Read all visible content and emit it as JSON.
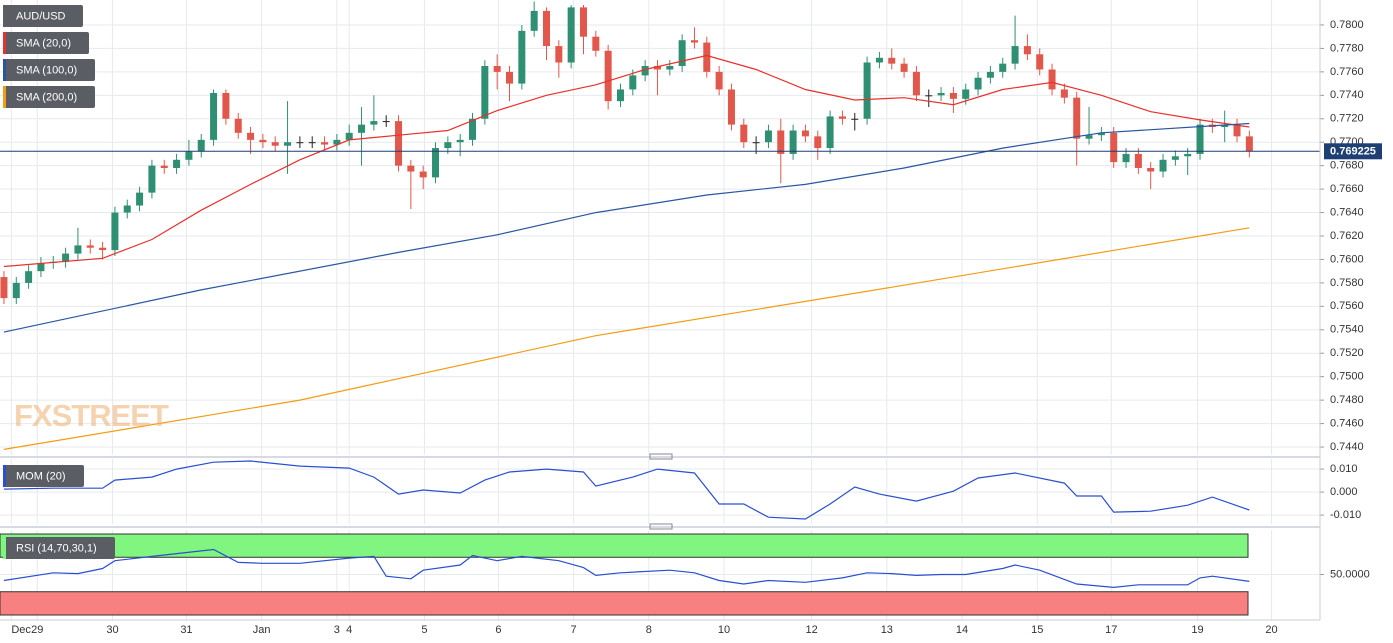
{
  "chart_data": [
    {
      "type": "candlestick",
      "title": "AUD/USD",
      "annotation": "FXSTREET",
      "up_color": "#2f8f73",
      "down_color": "#e2574c",
      "open": [
        0.7585,
        0.7567,
        0.758,
        0.759,
        0.7597,
        0.7598,
        0.7605,
        0.7612,
        0.761,
        0.7608,
        0.764,
        0.7646,
        0.7657,
        0.768,
        0.7678,
        0.7685,
        0.7692,
        0.7702,
        0.7742,
        0.772,
        0.7708,
        0.7702,
        0.77,
        0.7697,
        0.77,
        0.77,
        0.77,
        0.7698,
        0.7702,
        0.7708,
        0.7715,
        0.7718,
        0.7718,
        0.768,
        0.7675,
        0.767,
        0.7695,
        0.77,
        0.7702,
        0.772,
        0.7765,
        0.776,
        0.775,
        0.7795,
        0.7812,
        0.7782,
        0.7768,
        0.7815,
        0.779,
        0.7778,
        0.7735,
        0.7745,
        0.7757,
        0.7765,
        0.7762,
        0.7765,
        0.7787,
        0.7785,
        0.776,
        0.7745,
        0.7715,
        0.77,
        0.77,
        0.771,
        0.769,
        0.771,
        0.7705,
        0.7695,
        0.7722,
        0.772,
        0.772,
        0.7768,
        0.7772,
        0.7767,
        0.776,
        0.774,
        0.774,
        0.7742,
        0.7737,
        0.7745,
        0.7755,
        0.776,
        0.7767,
        0.7782,
        0.7775,
        0.7762,
        0.7745,
        0.7738,
        0.7703,
        0.7706,
        0.7708,
        0.7683,
        0.769,
        0.7678,
        0.7675,
        0.7685,
        0.7688,
        0.769,
        0.7715,
        0.7713,
        0.7715,
        0.7705
      ],
      "high": [
        0.759,
        0.7585,
        0.7595,
        0.7602,
        0.7603,
        0.761,
        0.7627,
        0.7617,
        0.7615,
        0.7645,
        0.7651,
        0.7662,
        0.7685,
        0.7685,
        0.769,
        0.7702,
        0.7707,
        0.7745,
        0.7745,
        0.7725,
        0.7713,
        0.7707,
        0.7705,
        0.7735,
        0.7705,
        0.7705,
        0.7705,
        0.7707,
        0.7715,
        0.773,
        0.774,
        0.7723,
        0.7723,
        0.7685,
        0.768,
        0.77,
        0.7705,
        0.7707,
        0.7725,
        0.777,
        0.7775,
        0.7765,
        0.78,
        0.782,
        0.7815,
        0.7787,
        0.7817,
        0.7817,
        0.7795,
        0.7783,
        0.775,
        0.7762,
        0.777,
        0.777,
        0.777,
        0.7792,
        0.7798,
        0.779,
        0.7765,
        0.775,
        0.772,
        0.7705,
        0.7715,
        0.772,
        0.7715,
        0.7715,
        0.771,
        0.7727,
        0.7727,
        0.7725,
        0.7773,
        0.7777,
        0.778,
        0.7772,
        0.7765,
        0.7745,
        0.7747,
        0.7747,
        0.775,
        0.776,
        0.7765,
        0.7772,
        0.7808,
        0.7792,
        0.778,
        0.7767,
        0.775,
        0.7743,
        0.773,
        0.7713,
        0.7713,
        0.7695,
        0.7695,
        0.7683,
        0.769,
        0.7693,
        0.7695,
        0.772,
        0.772,
        0.7727,
        0.772,
        0.771
      ],
      "low": [
        0.7562,
        0.7562,
        0.7575,
        0.7585,
        0.7592,
        0.7593,
        0.76,
        0.7605,
        0.76,
        0.7603,
        0.7635,
        0.7641,
        0.7652,
        0.7673,
        0.7673,
        0.768,
        0.7687,
        0.7697,
        0.7715,
        0.7703,
        0.769,
        0.7695,
        0.7692,
        0.7673,
        0.7695,
        0.7695,
        0.7693,
        0.7693,
        0.7697,
        0.768,
        0.771,
        0.7713,
        0.7675,
        0.7643,
        0.766,
        0.7665,
        0.769,
        0.7688,
        0.7697,
        0.7715,
        0.7745,
        0.7735,
        0.7745,
        0.779,
        0.777,
        0.7755,
        0.7763,
        0.7775,
        0.7773,
        0.7728,
        0.773,
        0.774,
        0.7752,
        0.774,
        0.7757,
        0.776,
        0.778,
        0.7755,
        0.774,
        0.771,
        0.7695,
        0.769,
        0.7695,
        0.7665,
        0.7685,
        0.77,
        0.7685,
        0.769,
        0.7715,
        0.771,
        0.7715,
        0.7763,
        0.7762,
        0.7755,
        0.7735,
        0.773,
        0.7735,
        0.7725,
        0.7732,
        0.774,
        0.775,
        0.7755,
        0.7762,
        0.777,
        0.7757,
        0.774,
        0.7733,
        0.768,
        0.7698,
        0.7701,
        0.7678,
        0.7678,
        0.7673,
        0.766,
        0.767,
        0.768,
        0.7672,
        0.7685,
        0.7708,
        0.77,
        0.77,
        0.7687
      ],
      "close": [
        0.7567,
        0.758,
        0.759,
        0.7597,
        0.7598,
        0.7605,
        0.7612,
        0.761,
        0.7608,
        0.764,
        0.7646,
        0.7657,
        0.768,
        0.7678,
        0.7685,
        0.7692,
        0.7702,
        0.7742,
        0.772,
        0.7708,
        0.7702,
        0.77,
        0.7697,
        0.77,
        0.77,
        0.77,
        0.7698,
        0.7702,
        0.7708,
        0.7715,
        0.7718,
        0.7718,
        0.768,
        0.7675,
        0.767,
        0.7695,
        0.77,
        0.7702,
        0.772,
        0.7765,
        0.776,
        0.775,
        0.7795,
        0.7812,
        0.7782,
        0.7768,
        0.7815,
        0.779,
        0.7778,
        0.7735,
        0.7745,
        0.7757,
        0.7765,
        0.7762,
        0.7765,
        0.7787,
        0.7785,
        0.776,
        0.7745,
        0.7715,
        0.77,
        0.77,
        0.771,
        0.769,
        0.771,
        0.7705,
        0.7695,
        0.7722,
        0.772,
        0.772,
        0.7768,
        0.7772,
        0.7767,
        0.776,
        0.774,
        0.774,
        0.7742,
        0.7737,
        0.7745,
        0.7755,
        0.776,
        0.7767,
        0.7782,
        0.7775,
        0.7762,
        0.7745,
        0.7738,
        0.7703,
        0.7706,
        0.7708,
        0.7683,
        0.769,
        0.7678,
        0.7675,
        0.7685,
        0.7688,
        0.769,
        0.7715,
        0.7713,
        0.7715,
        0.7705,
        0.769225
      ],
      "series": [
        {
          "name": "SMA (20,0)",
          "color": "#e8312b",
          "x": [
            0,
            8,
            12,
            16,
            20,
            24,
            28,
            32,
            36,
            40,
            44,
            48,
            52,
            57,
            61,
            65,
            69,
            73,
            77,
            81,
            85,
            89,
            93,
            97,
            101
          ],
          "values": [
            0.7594,
            0.7601,
            0.7617,
            0.7642,
            0.7664,
            0.7685,
            0.7702,
            0.7706,
            0.771,
            0.7727,
            0.774,
            0.7749,
            0.7762,
            0.7774,
            0.7762,
            0.7745,
            0.7736,
            0.7738,
            0.7732,
            0.7745,
            0.7751,
            0.774,
            0.7726,
            0.7719,
            0.7713
          ]
        },
        {
          "name": "SMA (100,0)",
          "color": "#2a56a0",
          "x": [
            0,
            16,
            32,
            40,
            48,
            57,
            65,
            73,
            81,
            89,
            101
          ],
          "values": [
            0.7538,
            0.7574,
            0.7606,
            0.7621,
            0.764,
            0.7655,
            0.7664,
            0.7678,
            0.7695,
            0.7708,
            0.7716
          ]
        },
        {
          "name": "SMA (200,0)",
          "color": "#f39c12",
          "x": [
            0,
            24,
            48,
            73,
            101
          ],
          "values": [
            0.7438,
            0.748,
            0.7535,
            0.7578,
            0.7627
          ]
        }
      ],
      "last_price": 0.769225,
      "last_price_color": "#1d3f73",
      "xlim": [
        -0.32,
        106.73
      ],
      "ylim": [
        0.74332,
        0.78213
      ],
      "yticks": [
        {
          "value": 0.744,
          "label": "0.7440"
        },
        {
          "value": 0.746,
          "label": "0.7460"
        },
        {
          "value": 0.748,
          "label": "0.7480"
        },
        {
          "value": 0.75,
          "label": "0.7500"
        },
        {
          "value": 0.752,
          "label": "0.7520"
        },
        {
          "value": 0.754,
          "label": "0.7540"
        },
        {
          "value": 0.756,
          "label": "0.7560"
        },
        {
          "value": 0.758,
          "label": "0.7580"
        },
        {
          "value": 0.76,
          "label": "0.7600"
        },
        {
          "value": 0.762,
          "label": "0.7620"
        },
        {
          "value": 0.764,
          "label": "0.7640"
        },
        {
          "value": 0.766,
          "label": "0.7660"
        },
        {
          "value": 0.768,
          "label": "0.7680"
        },
        {
          "value": 0.77,
          "label": "0.7700"
        },
        {
          "value": 0.772,
          "label": "0.7720"
        },
        {
          "value": 0.774,
          "label": "0.7740"
        },
        {
          "value": 0.776,
          "label": "0.7760"
        },
        {
          "value": 0.778,
          "label": "0.7780"
        },
        {
          "value": 0.78,
          "label": "0.7800"
        }
      ],
      "xticks": [
        {
          "value": 0.6,
          "label": "Dec"
        },
        {
          "value": 2.7,
          "label": "29"
        },
        {
          "value": 8.8,
          "label": "30"
        },
        {
          "value": 14.8,
          "label": "31"
        },
        {
          "value": 20.9,
          "label": "Jan"
        },
        {
          "value": 27,
          "label": "3"
        },
        {
          "value": 28,
          "label": "4"
        },
        {
          "value": 34.1,
          "label": "5"
        },
        {
          "value": 40.1,
          "label": "6"
        },
        {
          "value": 46.2,
          "label": "7"
        },
        {
          "value": 52.3,
          "label": "8"
        },
        {
          "value": 58.4,
          "label": "10"
        },
        {
          "value": 65.5,
          "label": "12"
        },
        {
          "value": 71.6,
          "label": "13"
        },
        {
          "value": 77.7,
          "label": "14"
        },
        {
          "value": 83.8,
          "label": "15"
        },
        {
          "value": 89.8,
          "label": "17"
        },
        {
          "value": 96.8,
          "label": "19"
        },
        {
          "value": 102.8,
          "label": "20"
        }
      ],
      "grid": true
    },
    {
      "type": "line",
      "series": [
        {
          "name": "MOM (20)",
          "color": "#2a4fd0",
          "x": [
            0,
            4,
            8,
            9,
            12,
            14,
            17,
            20,
            24,
            28,
            30,
            32,
            34,
            37,
            39,
            41,
            44,
            47,
            48,
            51,
            53,
            56,
            58,
            60,
            62,
            65,
            67,
            69,
            71,
            74,
            77,
            79,
            82,
            86,
            87,
            89,
            90,
            93,
            96,
            98,
            101
          ],
          "values": [
            0.0013,
            0.0017,
            0.0017,
            0.0052,
            0.0065,
            0.01,
            0.013,
            0.0135,
            0.0113,
            0.0104,
            0.0065,
            -0.0009,
            0.0009,
            -0.0004,
            0.0052,
            0.0087,
            0.01,
            0.0087,
            0.0026,
            0.0065,
            0.01,
            0.0083,
            -0.0052,
            -0.0052,
            -0.0109,
            -0.0117,
            -0.0052,
            0.0022,
            -0.0009,
            -0.0039,
            0.0004,
            0.0061,
            0.0083,
            0.0039,
            -0.0017,
            -0.0017,
            -0.0087,
            -0.0083,
            -0.0057,
            -0.0022,
            -0.0078
          ]
        }
      ],
      "ylim": [
        -0.013,
        0.0135
      ],
      "yticks": [
        {
          "value": -0.01,
          "label": "-0.010"
        },
        {
          "value": 0,
          "label": "0.000"
        },
        {
          "value": 0.01,
          "label": "0.010"
        }
      ]
    },
    {
      "type": "line",
      "series": [
        {
          "name": "RSI (14,70,30,1)",
          "color": "#2a4fd0",
          "x": [
            0,
            4,
            6,
            8,
            9,
            12,
            17,
            19,
            21,
            24,
            28,
            30,
            31,
            33,
            34,
            37,
            38,
            40,
            42,
            45,
            47,
            48,
            50,
            54,
            56,
            58,
            60,
            62,
            65,
            68,
            70,
            72,
            74,
            76,
            78,
            81,
            82,
            84,
            87,
            90,
            92,
            94,
            96,
            97,
            98,
            101
          ],
          "values": [
            43,
            52,
            51,
            57,
            66,
            71,
            79,
            64,
            63,
            63,
            69,
            71,
            48,
            45,
            55,
            61,
            72,
            66,
            71,
            66,
            58,
            49,
            52,
            55,
            52,
            43,
            39,
            43,
            41,
            46,
            52,
            51,
            49,
            50,
            50,
            57,
            61,
            55,
            39,
            35,
            38,
            38,
            38,
            46,
            48,
            42
          ]
        }
      ],
      "overbought": 70,
      "oversold": 30,
      "overbought_color": "#80f580",
      "oversold_color": "#f98080",
      "ylim": [
        3,
        97
      ],
      "yticks": [
        {
          "value": 50,
          "label": "50.0000"
        }
      ]
    }
  ]
}
